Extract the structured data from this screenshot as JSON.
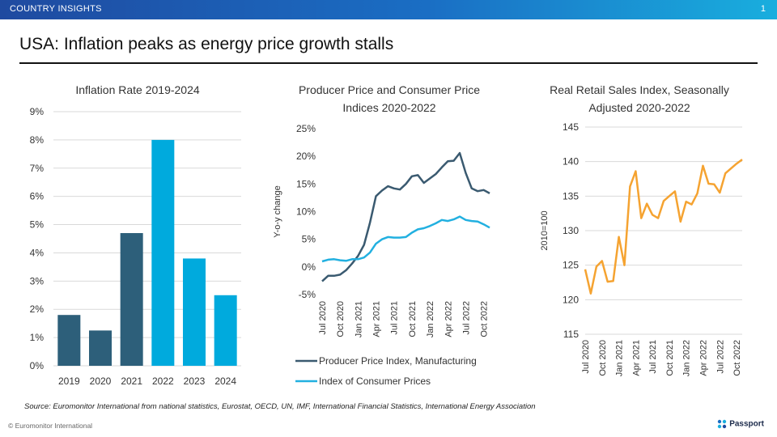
{
  "header": {
    "section": "COUNTRY INSIGHTS",
    "page_number": "1"
  },
  "headline": "USA: Inflation peaks as energy price growth stalls",
  "colors": {
    "dark": "#2d5f7a",
    "light": "#00aadd",
    "ppi_line": "#3a5a70",
    "cpi_line": "#22b0e0",
    "retail_line": "#f5a331",
    "grid": "#d9d9d9"
  },
  "chart_data": [
    {
      "type": "bar",
      "title": "Inflation Rate 2019-2024",
      "categories": [
        "2019",
        "2020",
        "2021",
        "2022",
        "2023",
        "2024"
      ],
      "values": [
        1.8,
        1.25,
        4.7,
        8.0,
        3.8,
        2.5
      ],
      "forecast": [
        false,
        false,
        false,
        true,
        true,
        true
      ],
      "ylim": [
        0,
        9
      ],
      "yticks": [
        "0%",
        "1%",
        "2%",
        "3%",
        "4%",
        "5%",
        "6%",
        "7%",
        "8%",
        "9%"
      ]
    },
    {
      "type": "line",
      "title": "Producer Price and Consumer Price Indices 2020-2022",
      "ylabel": "Y-o-y change",
      "ylim": [
        -5,
        25
      ],
      "yticks": [
        "-5%",
        "0%",
        "5%",
        "10%",
        "15%",
        "20%",
        "25%"
      ],
      "xticks": [
        "Jul 2020",
        "Oct 2020",
        "Jan 2021",
        "Apr 2021",
        "Jul 2021",
        "Oct 2021",
        "Jan 2022",
        "Apr 2022",
        "Jul 2022",
        "Oct 2022"
      ],
      "series": [
        {
          "name": "Producer Price Index, Manufacturing",
          "values": [
            -2.6,
            -1.6,
            -1.6,
            -1.4,
            -0.6,
            0.6,
            2.0,
            4.0,
            8.0,
            12.8,
            13.8,
            14.6,
            14.2,
            14.0,
            15.0,
            16.4,
            16.6,
            15.2,
            16.0,
            16.8,
            18.0,
            19.1,
            19.2,
            20.6,
            17.0,
            14.2,
            13.7,
            13.9,
            13.3
          ]
        },
        {
          "name": "Index of Consumer Prices",
          "values": [
            1.0,
            1.3,
            1.4,
            1.2,
            1.1,
            1.4,
            1.4,
            1.7,
            2.6,
            4.2,
            5.0,
            5.4,
            5.3,
            5.3,
            5.4,
            6.2,
            6.8,
            7.0,
            7.4,
            7.9,
            8.5,
            8.3,
            8.6,
            9.1,
            8.5,
            8.3,
            8.2,
            7.7,
            7.1
          ]
        }
      ]
    },
    {
      "type": "line",
      "title": "Real Retail Sales Index, Seasonally Adjusted 2020-2022",
      "ylabel": "2010=100",
      "ylim": [
        115,
        145
      ],
      "yticks": [
        "115",
        "120",
        "125",
        "130",
        "135",
        "140",
        "145"
      ],
      "xticks": [
        "Jul 2020",
        "Oct 2020",
        "Jan 2021",
        "Apr 2021",
        "Jul 2021",
        "Oct 2021",
        "Jan 2022",
        "Apr 2022",
        "Jul 2022",
        "Oct 2022"
      ],
      "series": [
        {
          "name": "Real Retail Sales Index",
          "values": [
            124.4,
            120.9,
            124.8,
            125.6,
            122.6,
            122.7,
            129.1,
            125.0,
            136.4,
            138.6,
            131.8,
            133.9,
            132.3,
            131.8,
            134.3,
            135.0,
            135.7,
            131.3,
            134.2,
            133.8,
            135.4,
            139.4,
            136.8,
            136.7,
            135.5,
            138.3,
            139.0,
            139.7,
            140.3
          ]
        }
      ]
    }
  ],
  "footer": {
    "source": "Source: Euromonitor International from national statistics, Eurostat, OECD, UN, IMF, International Financial Statistics, International Energy Association",
    "copyright": "© Euromonitor International",
    "brand": "Passport"
  }
}
